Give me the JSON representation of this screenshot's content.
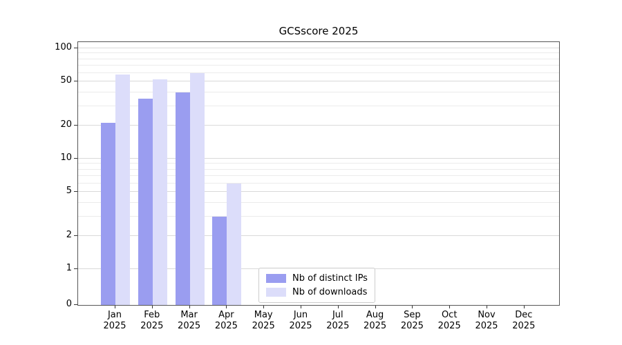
{
  "title": "GCSscore 2025",
  "chart_data": {
    "type": "bar",
    "title": "GCSscore 2025",
    "categories": [
      "Jan",
      "Feb",
      "Mar",
      "Apr",
      "May",
      "Jun",
      "Jul",
      "Aug",
      "Sep",
      "Oct",
      "Nov",
      "Dec"
    ],
    "year_label": "2025",
    "series": [
      {
        "name": "Nb of distinct IPs",
        "color": "#9a9df0",
        "values": [
          21,
          35,
          40,
          3,
          0,
          0,
          0,
          0,
          0,
          0,
          0,
          0
        ]
      },
      {
        "name": "Nb of downloads",
        "color": "#dcddfa",
        "values": [
          58,
          52,
          60,
          6,
          0,
          0,
          0,
          0,
          0,
          0,
          0,
          0
        ]
      }
    ],
    "yscale": "symlog",
    "yticks": [
      0,
      1,
      2,
      5,
      10,
      20,
      50,
      100
    ],
    "minor_gridlines": [
      3,
      4,
      6,
      7,
      8,
      9,
      30,
      40,
      60,
      70,
      80,
      90
    ],
    "ylim": [
      0,
      120
    ],
    "xlabel": "",
    "ylabel": "",
    "grid": "horizontal",
    "legend_position": "bottom-center-inside"
  },
  "legend": {
    "items": [
      {
        "label": "Nb of distinct IPs"
      },
      {
        "label": "Nb of downloads"
      }
    ]
  }
}
